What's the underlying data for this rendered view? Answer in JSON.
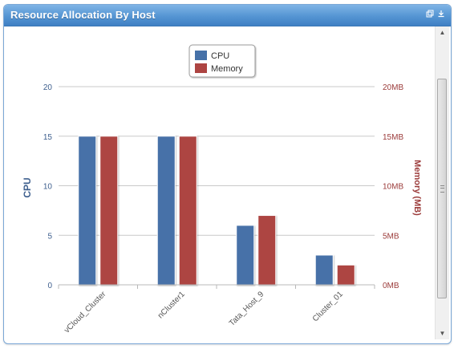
{
  "window": {
    "title": "Resource Allocation By Host",
    "icons": [
      "restore-icon",
      "download-icon"
    ]
  },
  "colors": {
    "cpu": "#4671a8",
    "memory": "#ad4442",
    "left_axis_text": "#3e5f8e",
    "right_axis_text": "#9b3b3a",
    "grid": "#c9c9c9"
  },
  "chart_data": {
    "type": "bar",
    "title": "",
    "categories": [
      "vCloud_Cluster",
      "nCluster1",
      "Tata_Host_9",
      "Cluster_01"
    ],
    "series": [
      {
        "name": "CPU",
        "axis": "left",
        "values": [
          15,
          15,
          6,
          3
        ]
      },
      {
        "name": "Memory",
        "axis": "right",
        "values": [
          15,
          15,
          7,
          2
        ]
      }
    ],
    "ylabel": "CPU",
    "ylabel_right": "Memory (MB)",
    "ylim": [
      0,
      20
    ],
    "ylim_right": [
      0,
      20
    ],
    "yticks": [
      "0",
      "5",
      "10",
      "15",
      "20"
    ],
    "yticks_right": [
      "0MB",
      "5MB",
      "10MB",
      "15MB",
      "20MB"
    ],
    "grid": true,
    "legend": "top-center"
  }
}
